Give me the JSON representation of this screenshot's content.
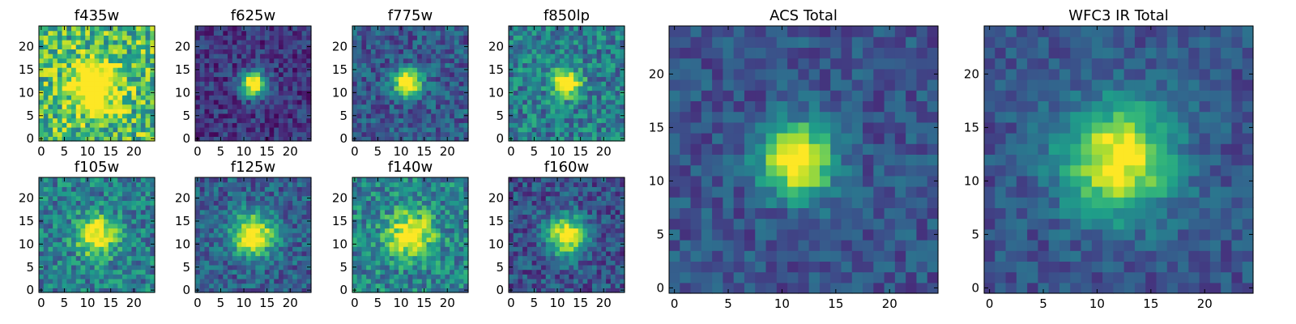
{
  "chart_data": [
    {
      "type": "heatmap",
      "title": "f435w",
      "xticks": [
        "0",
        "5",
        "10",
        "15",
        "20"
      ],
      "yticks": [
        "0",
        "5",
        "10",
        "15",
        "20"
      ],
      "xlim": [
        0,
        24
      ],
      "ylim": [
        0,
        24
      ],
      "grid_size": 25,
      "center": [
        11.5,
        11.5
      ],
      "peak": 0.78,
      "width": 3.4,
      "background": 0.68,
      "noise": 0.3,
      "colormap": "viridis"
    },
    {
      "type": "heatmap",
      "title": "f625w",
      "xticks": [
        "0",
        "5",
        "10",
        "15",
        "20"
      ],
      "yticks": [
        "0",
        "5",
        "10",
        "15",
        "20"
      ],
      "xlim": [
        0,
        24
      ],
      "ylim": [
        0,
        24
      ],
      "grid_size": 25,
      "center": [
        12,
        12
      ],
      "peak": 0.95,
      "width": 1.9,
      "background": 0.16,
      "noise": 0.15,
      "colormap": "viridis"
    },
    {
      "type": "heatmap",
      "title": "f775w",
      "xticks": [
        "0",
        "5",
        "10",
        "15",
        "20"
      ],
      "yticks": [
        "0",
        "5",
        "10",
        "15",
        "20"
      ],
      "xlim": [
        0,
        24
      ],
      "ylim": [
        0,
        24
      ],
      "grid_size": 25,
      "center": [
        11.5,
        12
      ],
      "peak": 0.92,
      "width": 2.0,
      "background": 0.28,
      "noise": 0.18,
      "colormap": "viridis"
    },
    {
      "type": "heatmap",
      "title": "f850lp",
      "xticks": [
        "0",
        "5",
        "10",
        "15",
        "20"
      ],
      "yticks": [
        "0",
        "5",
        "10",
        "15",
        "20"
      ],
      "xlim": [
        0,
        24
      ],
      "ylim": [
        0,
        24
      ],
      "grid_size": 25,
      "center": [
        12,
        12
      ],
      "peak": 0.85,
      "width": 2.0,
      "background": 0.42,
      "noise": 0.22,
      "colormap": "viridis"
    },
    {
      "type": "heatmap",
      "title": "f105w",
      "xticks": [
        "0",
        "5",
        "10",
        "15",
        "20"
      ],
      "yticks": [
        "0",
        "5",
        "10",
        "15",
        "20"
      ],
      "xlim": [
        0,
        24
      ],
      "ylim": [
        0,
        24
      ],
      "grid_size": 25,
      "center": [
        12,
        12
      ],
      "peak": 0.72,
      "width": 3.0,
      "background": 0.42,
      "noise": 0.22,
      "colormap": "viridis"
    },
    {
      "type": "heatmap",
      "title": "f125w",
      "xticks": [
        "0",
        "5",
        "10",
        "15",
        "20"
      ],
      "yticks": [
        "0",
        "5",
        "10",
        "15",
        "20"
      ],
      "xlim": [
        0,
        24
      ],
      "ylim": [
        0,
        24
      ],
      "grid_size": 25,
      "center": [
        12,
        12
      ],
      "peak": 0.8,
      "width": 3.2,
      "background": 0.3,
      "noise": 0.18,
      "colormap": "viridis"
    },
    {
      "type": "heatmap",
      "title": "f140w",
      "xticks": [
        "0",
        "5",
        "10",
        "15",
        "20"
      ],
      "yticks": [
        "0",
        "5",
        "10",
        "15",
        "20"
      ],
      "xlim": [
        0,
        24
      ],
      "ylim": [
        0,
        24
      ],
      "grid_size": 25,
      "center": [
        12,
        12
      ],
      "peak": 0.65,
      "width": 3.4,
      "background": 0.45,
      "noise": 0.22,
      "colormap": "viridis"
    },
    {
      "type": "heatmap",
      "title": "f160w",
      "xticks": [
        "0",
        "5",
        "10",
        "15",
        "20"
      ],
      "yticks": [
        "0",
        "5",
        "10",
        "15",
        "20"
      ],
      "xlim": [
        0,
        24
      ],
      "ylim": [
        0,
        24
      ],
      "grid_size": 25,
      "center": [
        12,
        12
      ],
      "peak": 0.8,
      "width": 3.0,
      "background": 0.25,
      "noise": 0.18,
      "colormap": "viridis"
    },
    {
      "type": "heatmap",
      "title": "ACS Total",
      "xticks": [
        "0",
        "5",
        "10",
        "15",
        "20"
      ],
      "yticks": [
        "0",
        "5",
        "10",
        "15",
        "20"
      ],
      "xlim": [
        0,
        24
      ],
      "ylim": [
        0,
        24
      ],
      "grid_size": 25,
      "center": [
        11.5,
        12
      ],
      "peak": 0.88,
      "width": 2.3,
      "background": 0.26,
      "noise": 0.13,
      "colormap": "viridis"
    },
    {
      "type": "heatmap",
      "title": "WFC3 IR Total",
      "xticks": [
        "0",
        "5",
        "10",
        "15",
        "20"
      ],
      "yticks": [
        "0",
        "5",
        "10",
        "15",
        "20"
      ],
      "xlim": [
        0,
        24
      ],
      "ylim": [
        0,
        24
      ],
      "grid_size": 25,
      "center": [
        12,
        12
      ],
      "peak": 0.78,
      "width": 3.6,
      "background": 0.26,
      "noise": 0.12,
      "colormap": "viridis"
    }
  ]
}
